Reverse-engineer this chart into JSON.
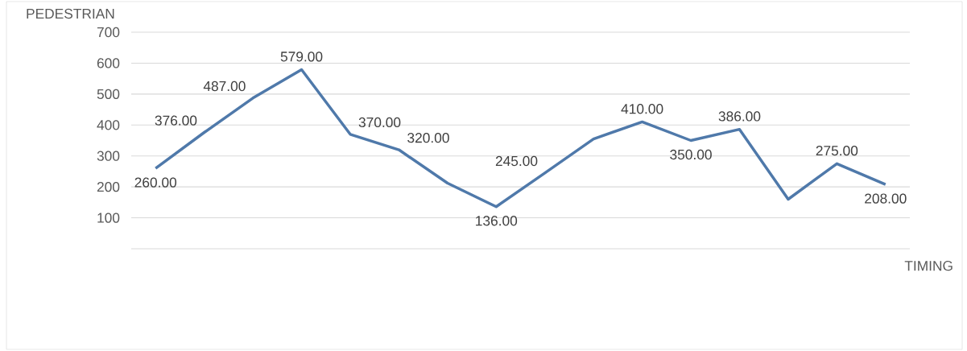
{
  "chart_data": {
    "type": "line",
    "xlabel": "TIMING",
    "ylabel": "PEDESTRIAN",
    "categories": [
      null,
      null,
      null,
      null,
      null,
      null,
      null,
      null,
      null,
      null,
      null,
      null,
      null,
      null,
      null,
      null
    ],
    "values": [
      260,
      376,
      487,
      579,
      370,
      320,
      212,
      136,
      245,
      355,
      410,
      350,
      386,
      160,
      275,
      208
    ],
    "value_labels": [
      "260.00",
      "376.00",
      "487.00",
      "579.00",
      "370.00",
      "320.00",
      null,
      "136.00",
      "245.00",
      null,
      "410.00",
      "350.00",
      "386.00",
      null,
      "275.00",
      "208.00"
    ],
    "color": "#4f79aa",
    "ylim": [
      0,
      700
    ],
    "yticks": [
      {
        "value": 0,
        "label": null
      },
      100,
      200,
      300,
      400,
      500,
      600,
      700
    ],
    "grid": "y",
    "marker": "none",
    "line_style": "solid"
  }
}
